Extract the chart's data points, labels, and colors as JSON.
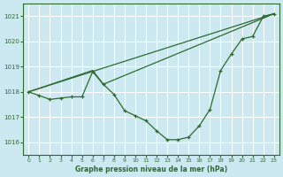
{
  "title": "Graphe pression niveau de la mer (hPa)",
  "bg_color": "#cce8f0",
  "grid_color": "#ffffff",
  "line_color": "#2d6a2d",
  "ylim": [
    1015.5,
    1021.5
  ],
  "xlim": [
    -0.5,
    23.5
  ],
  "yticks": [
    1016,
    1017,
    1018,
    1019,
    1020,
    1021
  ],
  "xticks": [
    0,
    1,
    2,
    3,
    4,
    5,
    6,
    7,
    8,
    9,
    10,
    11,
    12,
    13,
    14,
    15,
    16,
    17,
    18,
    19,
    20,
    21,
    22,
    23
  ],
  "main_x": [
    0,
    1,
    2,
    3,
    4,
    5,
    6,
    7,
    8,
    9,
    10,
    11,
    12,
    13,
    14,
    15,
    16,
    17,
    18,
    19,
    20,
    21,
    22,
    23
  ],
  "main_y": [
    1018.0,
    1017.85,
    1017.7,
    1017.75,
    1017.8,
    1017.8,
    1018.8,
    1018.3,
    1017.9,
    1017.25,
    1017.05,
    1016.85,
    1016.45,
    1016.1,
    1016.1,
    1016.2,
    1016.65,
    1017.3,
    1018.85,
    1019.5,
    1020.1,
    1020.2,
    1021.0,
    1021.1
  ],
  "line2_x": [
    0,
    6,
    7,
    23
  ],
  "line2_y": [
    1018.0,
    1018.85,
    1018.3,
    1021.1
  ],
  "line3_x": [
    0,
    23
  ],
  "line3_y": [
    1018.0,
    1021.1
  ]
}
